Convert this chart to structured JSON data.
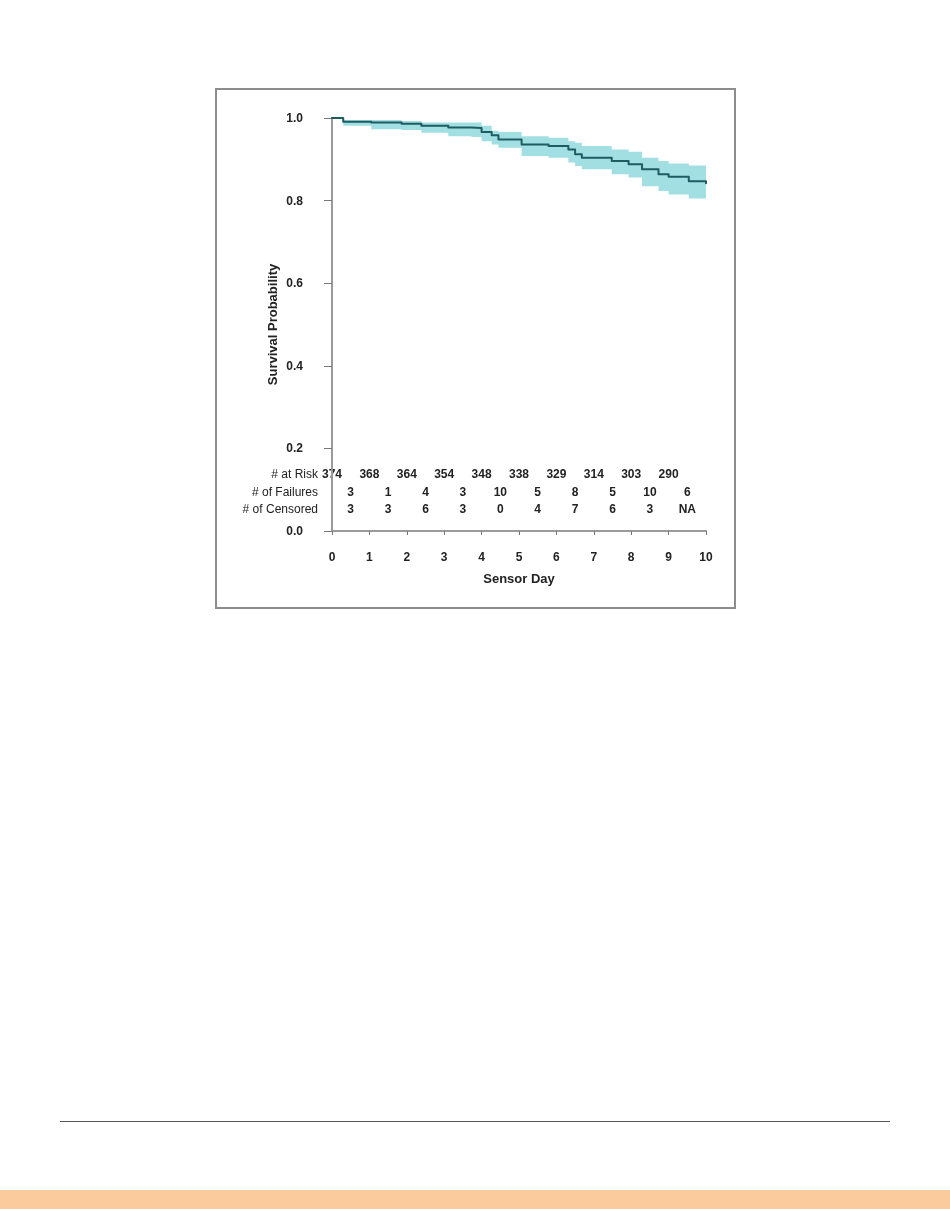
{
  "chart_data": {
    "type": "step",
    "xlabel": "Sensor Day",
    "ylabel": "Survival Probability",
    "x": [
      0,
      0.3,
      1.05,
      1.86,
      2.39,
      3.11,
      3.73,
      4.0,
      4.27,
      4.45,
      5.07,
      5.79,
      6.32,
      6.5,
      6.68,
      7.48,
      7.93,
      8.29,
      8.73,
      9.0,
      9.54,
      10.0
    ],
    "series": [
      {
        "color": "#1d5c60",
        "values": [
          1.0,
          0.991,
          0.989,
          0.986,
          0.981,
          0.977,
          0.976,
          0.966,
          0.958,
          0.948,
          0.936,
          0.932,
          0.924,
          0.912,
          0.904,
          0.896,
          0.888,
          0.876,
          0.864,
          0.858,
          0.847,
          0.842
        ],
        "lower": [
          1.0,
          0.981,
          0.973,
          0.971,
          0.964,
          0.956,
          0.954,
          0.944,
          0.936,
          0.928,
          0.908,
          0.904,
          0.892,
          0.884,
          0.876,
          0.864,
          0.856,
          0.835,
          0.823,
          0.815,
          0.805,
          0.799
        ],
        "upper": [
          1.0,
          0.995,
          0.995,
          0.993,
          0.989,
          0.989,
          0.989,
          0.981,
          0.969,
          0.966,
          0.956,
          0.952,
          0.944,
          0.94,
          0.932,
          0.924,
          0.918,
          0.904,
          0.896,
          0.89,
          0.885,
          0.882
        ]
      }
    ],
    "xlim": [
      0,
      10
    ],
    "xticks": [
      0,
      1,
      2,
      3,
      4,
      5,
      6,
      7,
      8,
      9,
      10
    ],
    "ylim": [
      0,
      1
    ],
    "yticks": [
      {
        "value": 0,
        "label": "0.0"
      },
      0.2,
      0.4,
      0.6,
      0.8,
      {
        "value": 1,
        "label": "1.0"
      }
    ],
    "annotations": [
      "# at Risk",
      "374",
      "368",
      "364",
      "354",
      "348",
      "338",
      "329",
      "314",
      "303",
      "290",
      "# of Failures",
      "3",
      "1",
      "4",
      "3",
      "10",
      "5",
      "8",
      "5",
      "10",
      "6",
      "# of Censored",
      "3",
      "3",
      "6",
      "3",
      "0",
      "4",
      "7",
      "6",
      "3",
      "NA"
    ]
  }
}
